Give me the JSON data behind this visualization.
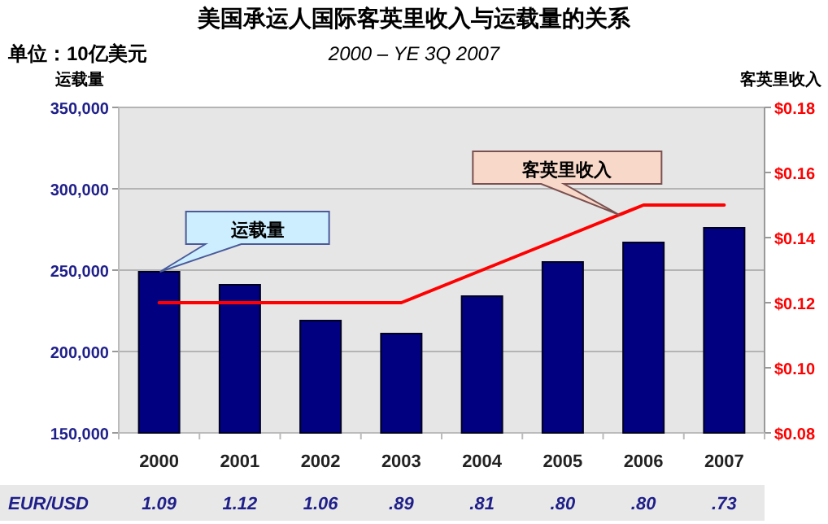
{
  "chart_data": {
    "type": "bar",
    "title": "美国承运人国际客英里收入与运载量的关系",
    "subtitle": "2000 – YE 3Q 2007",
    "ylabel": "运载量",
    "y2label": "客英里收入",
    "categories": [
      "2000",
      "2001",
      "2002",
      "2003",
      "2004",
      "2005",
      "2006",
      "2007"
    ],
    "series": [
      {
        "color": "#000080",
        "values": [
          249000,
          241000,
          219000,
          211000,
          234000,
          255000,
          267000,
          276000
        ]
      },
      {
        "type": "line",
        "axis": "y2",
        "color": "#ff0000",
        "values": [
          0.12,
          0.12,
          0.12,
          0.12,
          0.13,
          0.14,
          0.15,
          0.15
        ]
      }
    ],
    "ylim": [
      150000,
      350000
    ],
    "yticks": [
      {
        "value": 150000,
        "label": "150,000"
      },
      {
        "value": 200000,
        "label": "200,000"
      },
      {
        "value": 250000,
        "label": "250,000"
      },
      {
        "value": 300000,
        "label": "300,000"
      },
      {
        "value": 350000,
        "label": "350,000"
      }
    ],
    "y2lim": [
      0.08,
      0.18
    ],
    "y2ticks": [
      {
        "value": 0.08,
        "label": "$0.08"
      },
      {
        "value": 0.1,
        "label": "$0.10"
      },
      {
        "value": 0.12,
        "label": "$0.12"
      },
      {
        "value": 0.14,
        "label": "$0.14"
      },
      {
        "value": 0.16,
        "label": "$0.16"
      },
      {
        "value": 0.18,
        "label": "$0.18"
      }
    ],
    "grid": "y",
    "annotations": [
      "单位：10亿美元",
      "运载量",
      "客英里收入",
      "EUR/USD",
      "1.09",
      "1.12",
      "1.06",
      ".89",
      ".81",
      ".80",
      ".80",
      ".73"
    ]
  }
}
